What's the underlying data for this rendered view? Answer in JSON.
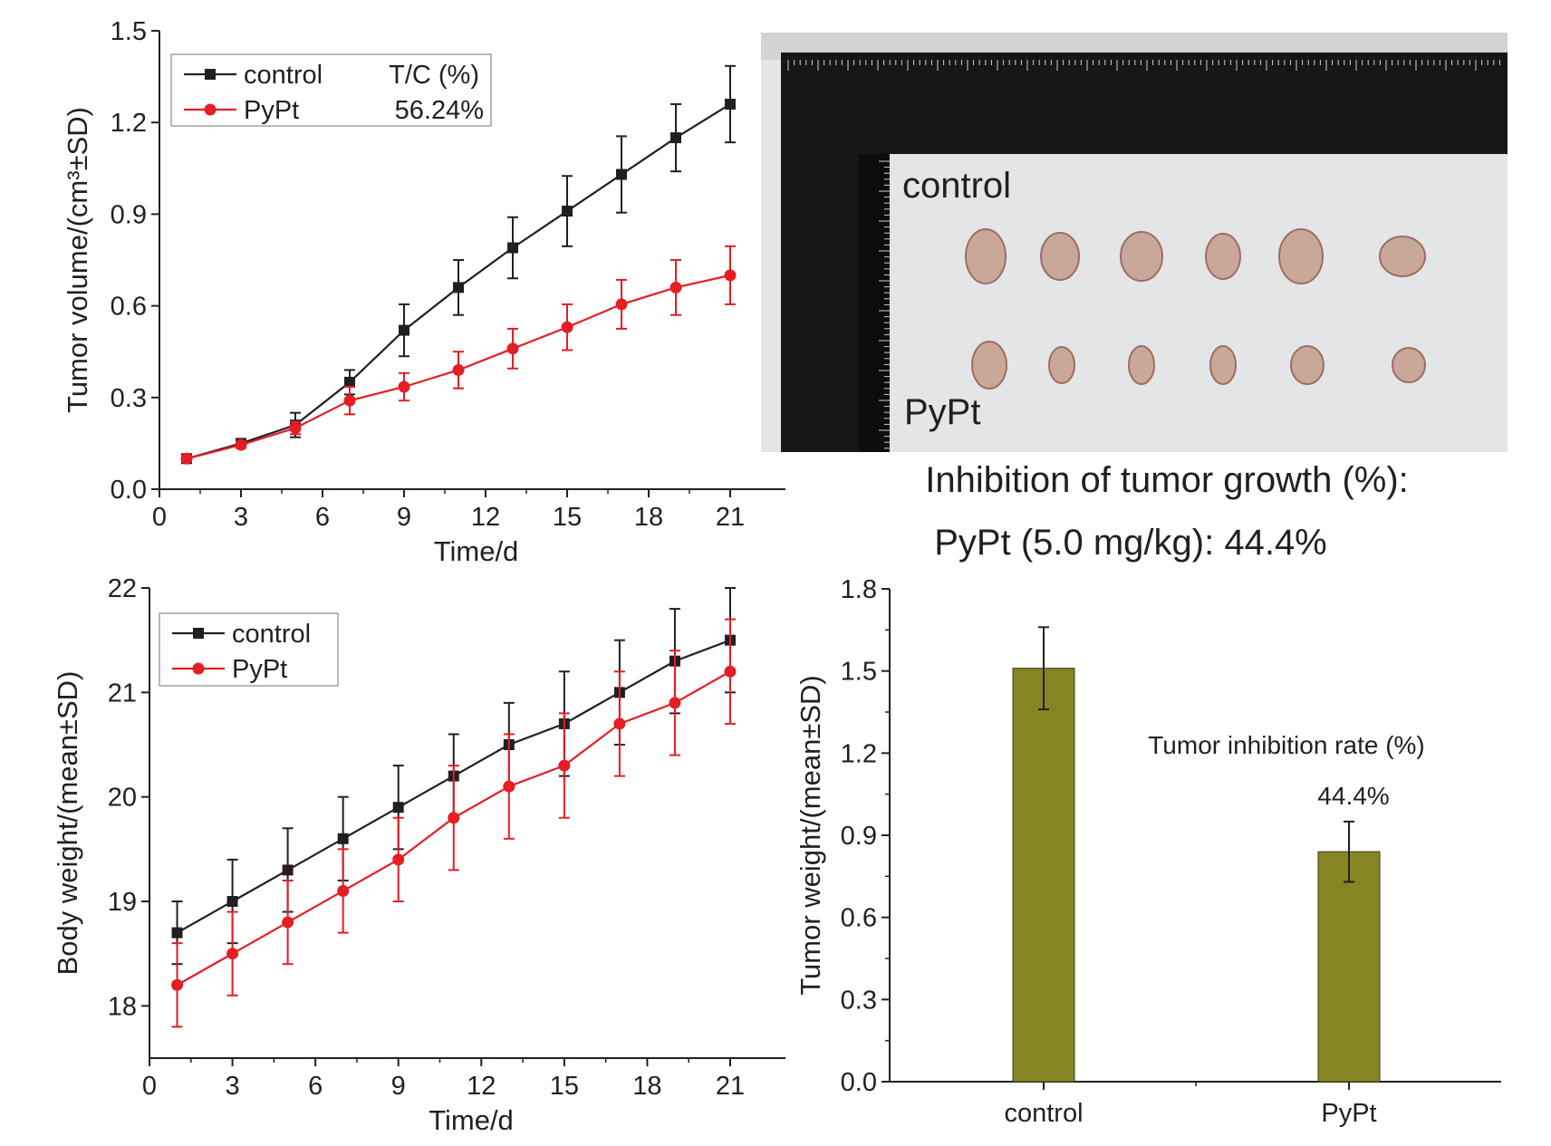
{
  "chart_data": [
    {
      "type": "line",
      "xlabel": "Time/d",
      "ylabel": "Tumor volume/(cm³±SD)",
      "xlim": [
        0,
        23
      ],
      "ylim": [
        0,
        1.5
      ],
      "xticks": [
        0,
        3,
        6,
        9,
        12,
        15,
        18,
        21
      ],
      "yticks": [
        "0.0",
        "0.3",
        "0.6",
        "0.9",
        "1.2",
        "1.5"
      ],
      "x": [
        1,
        3,
        5,
        7,
        9,
        11,
        13,
        15,
        17,
        19,
        21
      ],
      "legend": {
        "header": "T/C (%)",
        "position": "top-left"
      },
      "series": [
        {
          "name": "control",
          "color": "#231f20",
          "marker": "square",
          "values": [
            0.1,
            0.15,
            0.21,
            0.35,
            0.52,
            0.66,
            0.79,
            0.91,
            1.03,
            1.15,
            1.26
          ],
          "sd": [
            0.01,
            0.01,
            0.04,
            0.04,
            0.085,
            0.09,
            0.1,
            0.115,
            0.125,
            0.11,
            0.125
          ]
        },
        {
          "name": "PyPt",
          "color": "#e31e24",
          "marker": "circle",
          "tc": "56.24%",
          "values": [
            0.1,
            0.145,
            0.2,
            0.29,
            0.335,
            0.39,
            0.46,
            0.53,
            0.605,
            0.66,
            0.7
          ],
          "sd": [
            0.01,
            0.01,
            0.02,
            0.045,
            0.045,
            0.06,
            0.065,
            0.075,
            0.08,
            0.09,
            0.095
          ]
        }
      ]
    },
    {
      "type": "line",
      "xlabel": "Time/d",
      "ylabel": "Body weight/(mean±SD)",
      "xlim": [
        0,
        23
      ],
      "ylim": [
        17.5,
        22
      ],
      "xticks": [
        0,
        3,
        6,
        9,
        12,
        15,
        18,
        21
      ],
      "yticks": [
        "18",
        "19",
        "20",
        "21",
        "22"
      ],
      "x": [
        1,
        3,
        5,
        7,
        9,
        11,
        13,
        15,
        17,
        19,
        21
      ],
      "legend": {
        "position": "top-left"
      },
      "series": [
        {
          "name": "control",
          "color": "#231f20",
          "marker": "square",
          "values": [
            18.7,
            19.0,
            19.3,
            19.6,
            19.9,
            20.2,
            20.5,
            20.7,
            21.0,
            21.3,
            21.5
          ],
          "sd": [
            0.3,
            0.4,
            0.4,
            0.4,
            0.4,
            0.4,
            0.4,
            0.5,
            0.5,
            0.5,
            0.5
          ]
        },
        {
          "name": "PyPt",
          "color": "#e31e24",
          "marker": "circle",
          "values": [
            18.2,
            18.5,
            18.8,
            19.1,
            19.4,
            19.8,
            20.1,
            20.3,
            20.7,
            20.9,
            21.2
          ],
          "sd": [
            0.4,
            0.4,
            0.4,
            0.4,
            0.4,
            0.5,
            0.5,
            0.5,
            0.5,
            0.5,
            0.5
          ]
        }
      ]
    },
    {
      "type": "bar",
      "xlabel": "",
      "ylabel": "Tumor weight/(mean±SD)",
      "ylim": [
        0,
        1.8
      ],
      "yticks": [
        "0.0",
        "0.3",
        "0.6",
        "0.9",
        "1.2",
        "1.5",
        "1.8"
      ],
      "categories": [
        "control",
        "PyPt"
      ],
      "values": [
        1.51,
        0.84
      ],
      "sd": [
        0.15,
        0.11
      ],
      "bar_color": "#878523",
      "annotation_title": "Tumor inhibition rate (%)",
      "annotation_value": "44.4%"
    }
  ],
  "photo": {
    "label_control": "control",
    "label_pypt": "PyPt",
    "tumor_color": "#c9a89a"
  },
  "summary": {
    "line1": "Inhibition of tumor growth (%):",
    "line2": "PyPt (5.0 mg/kg): 44.4%"
  }
}
